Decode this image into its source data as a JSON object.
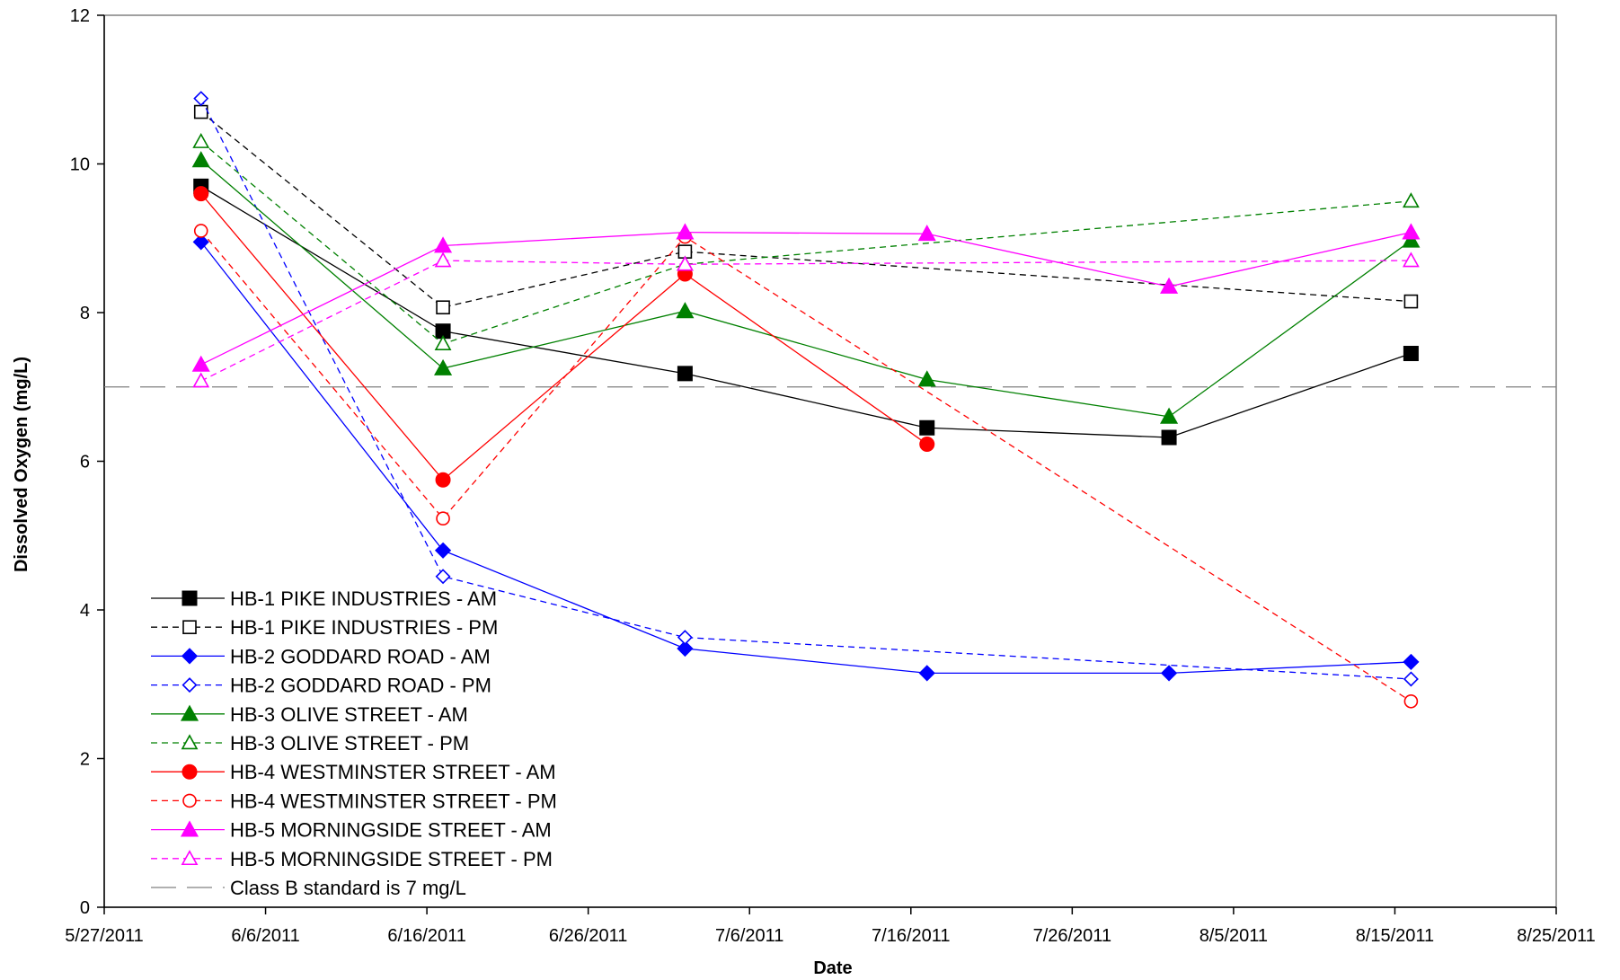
{
  "chart_data": {
    "type": "line",
    "title": "",
    "xlabel": "Date",
    "ylabel": "Dissolved Oxygen (mg/L)",
    "x_axis": {
      "type": "date",
      "min": "2011-05-27",
      "max": "2011-08-25",
      "ticks": [
        "2011-05-27",
        "2011-06-06",
        "2011-06-16",
        "2011-06-26",
        "2011-07-06",
        "2011-07-16",
        "2011-07-26",
        "2011-08-05",
        "2011-08-15",
        "2011-08-25"
      ],
      "tick_labels": [
        "5/27/2011",
        "6/6/2011",
        "6/16/2011",
        "6/26/2011",
        "7/6/2011",
        "7/16/2011",
        "7/26/2011",
        "8/5/2011",
        "8/15/2011",
        "8/25/2011"
      ]
    },
    "y_axis": {
      "min": 0,
      "max": 12,
      "ticks": [
        0,
        2,
        4,
        6,
        8,
        10,
        12
      ],
      "tick_labels": [
        "0",
        "2",
        "4",
        "6",
        "8",
        "10",
        "12"
      ]
    },
    "grid": false,
    "legend_placement": "bottom-left",
    "reference_line": {
      "name": "Class B standard is 7 mg/L",
      "y": 7,
      "color": "#808080"
    },
    "series": [
      {
        "name": "HB-1  PIKE INDUSTRIES - AM",
        "color": "#000000",
        "marker": "square",
        "filled": true,
        "dashed": false,
        "points": [
          {
            "x": "2011-06-02",
            "y": 9.7
          },
          {
            "x": "2011-06-17",
            "y": 7.75
          },
          {
            "x": "2011-07-02",
            "y": 7.18
          },
          {
            "x": "2011-07-17",
            "y": 6.45
          },
          {
            "x": "2011-08-01",
            "y": 6.32
          },
          {
            "x": "2011-08-16",
            "y": 7.45
          }
        ]
      },
      {
        "name": "HB-1  PIKE INDUSTRIES - PM",
        "color": "#000000",
        "marker": "square",
        "filled": false,
        "dashed": true,
        "points": [
          {
            "x": "2011-06-02",
            "y": 10.7
          },
          {
            "x": "2011-06-17",
            "y": 8.07
          },
          {
            "x": "2011-07-02",
            "y": 8.82
          },
          {
            "x": "2011-08-16",
            "y": 8.15
          }
        ]
      },
      {
        "name": "HB-2 GODDARD ROAD - AM",
        "color": "#0000FF",
        "marker": "diamond",
        "filled": true,
        "dashed": false,
        "points": [
          {
            "x": "2011-06-02",
            "y": 8.95
          },
          {
            "x": "2011-06-17",
            "y": 4.8
          },
          {
            "x": "2011-07-02",
            "y": 3.48
          },
          {
            "x": "2011-07-17",
            "y": 3.15
          },
          {
            "x": "2011-08-01",
            "y": 3.15
          },
          {
            "x": "2011-08-16",
            "y": 3.3
          }
        ]
      },
      {
        "name": "HB-2 GODDARD ROAD - PM",
        "color": "#0000FF",
        "marker": "diamond",
        "filled": false,
        "dashed": true,
        "points": [
          {
            "x": "2011-06-02",
            "y": 10.88
          },
          {
            "x": "2011-06-17",
            "y": 4.45
          },
          {
            "x": "2011-07-02",
            "y": 3.63
          },
          {
            "x": "2011-08-16",
            "y": 3.07
          }
        ]
      },
      {
        "name": "HB-3 OLIVE STREET - AM",
        "color": "#008000",
        "marker": "triangle",
        "filled": true,
        "dashed": false,
        "points": [
          {
            "x": "2011-06-02",
            "y": 10.05
          },
          {
            "x": "2011-06-17",
            "y": 7.25
          },
          {
            "x": "2011-07-02",
            "y": 8.02
          },
          {
            "x": "2011-07-17",
            "y": 7.1
          },
          {
            "x": "2011-08-01",
            "y": 6.6
          },
          {
            "x": "2011-08-16",
            "y": 8.97
          }
        ]
      },
      {
        "name": "HB-3 OLIVE STREET - PM",
        "color": "#008000",
        "marker": "triangle",
        "filled": false,
        "dashed": true,
        "points": [
          {
            "x": "2011-06-02",
            "y": 10.3
          },
          {
            "x": "2011-06-17",
            "y": 7.58
          },
          {
            "x": "2011-07-02",
            "y": 8.65
          },
          {
            "x": "2011-08-16",
            "y": 9.5
          }
        ]
      },
      {
        "name": "HB-4 WESTMINSTER STREET - AM",
        "color": "#FF0000",
        "marker": "circle",
        "filled": true,
        "dashed": false,
        "points": [
          {
            "x": "2011-06-02",
            "y": 9.6
          },
          {
            "x": "2011-06-17",
            "y": 5.75
          },
          {
            "x": "2011-07-02",
            "y": 8.52
          },
          {
            "x": "2011-07-17",
            "y": 6.23
          }
        ]
      },
      {
        "name": "HB-4 WESTMINSTER STREET - PM",
        "color": "#FF0000",
        "marker": "circle",
        "filled": false,
        "dashed": true,
        "points": [
          {
            "x": "2011-06-02",
            "y": 9.1
          },
          {
            "x": "2011-06-17",
            "y": 5.23
          },
          {
            "x": "2011-07-02",
            "y": 9.02
          },
          {
            "x": "2011-08-16",
            "y": 2.77
          }
        ]
      },
      {
        "name": "HB-5 MORNINGSIDE STREET - AM",
        "color": "#FF00FF",
        "marker": "triangle",
        "filled": true,
        "dashed": false,
        "points": [
          {
            "x": "2011-06-02",
            "y": 7.3
          },
          {
            "x": "2011-06-17",
            "y": 8.9
          },
          {
            "x": "2011-07-02",
            "y": 9.08
          },
          {
            "x": "2011-07-17",
            "y": 9.06
          },
          {
            "x": "2011-08-01",
            "y": 8.35
          },
          {
            "x": "2011-08-16",
            "y": 9.08
          }
        ]
      },
      {
        "name": "HB-5 MORNINGSIDE STREET - PM",
        "color": "#FF00FF",
        "marker": "triangle",
        "filled": false,
        "dashed": true,
        "points": [
          {
            "x": "2011-06-02",
            "y": 7.08
          },
          {
            "x": "2011-06-17",
            "y": 8.7
          },
          {
            "x": "2011-07-02",
            "y": 8.65
          },
          {
            "x": "2011-08-16",
            "y": 8.7
          }
        ]
      }
    ]
  }
}
